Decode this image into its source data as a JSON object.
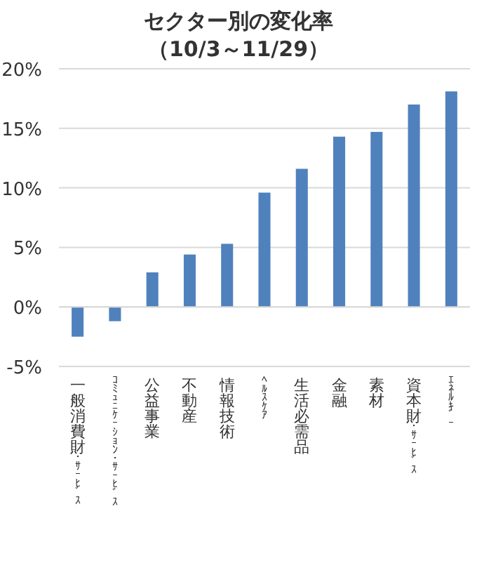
{
  "chart_data": {
    "type": "bar",
    "title": "セクター別の変化率",
    "subtitle": "（10/3～11/29）",
    "categories": [
      "一般消費財･ｻｰﾋﾞｽ",
      "ｺﾐｭﾆｹｰｼｮﾝ･ｻｰﾋﾞｽ",
      "公益事業",
      "不動産",
      "情報技術",
      "ﾍﾙｽｹｱ",
      "生活必需品",
      "金融",
      "素材",
      "資本財･ｻｰﾋﾞｽ",
      "ｴﾈﾙｷﾞｰ"
    ],
    "values": [
      -2.5,
      -1.2,
      2.9,
      4.4,
      5.3,
      9.6,
      11.6,
      14.3,
      14.7,
      17.0,
      18.1
    ],
    "color": "#4f81bd",
    "ylim": [
      -5,
      20
    ],
    "yticks": [
      {
        "value": -5,
        "label": "-5%"
      },
      {
        "value": 0,
        "label": "0%"
      },
      {
        "value": 5,
        "label": "5%"
      },
      {
        "value": 10,
        "label": "10%"
      },
      {
        "value": 15,
        "label": "15%"
      },
      {
        "value": 20,
        "label": "20%"
      }
    ],
    "grid": "y"
  }
}
